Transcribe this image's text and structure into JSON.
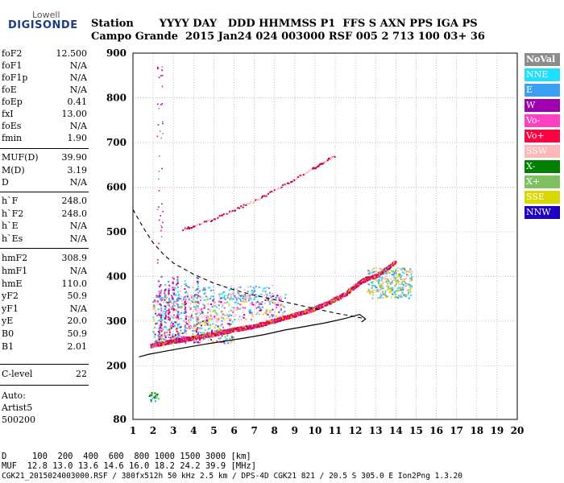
{
  "logo": {
    "brand": "Lowell",
    "product": "DIGISONDE"
  },
  "header": {
    "line1": "Station       YYYY DAY   DDD HHMMSS P1  FFS S AXN PPS IGA PS",
    "line2": "Campo Grande  2015 Jan24 024 003000 RSF 005 2 713 100 03+ 36"
  },
  "params": [
    {
      "name": "foF2",
      "value": "12.500"
    },
    {
      "name": "foF1",
      "value": "N/A"
    },
    {
      "name": "foF1p",
      "value": "N/A"
    },
    {
      "name": "foE",
      "value": "N/A"
    },
    {
      "name": "foEp",
      "value": "0.41"
    },
    {
      "name": "fxI",
      "value": "13.00"
    },
    {
      "name": "foEs",
      "value": "N/A"
    },
    {
      "name": "fmin",
      "value": "1.90"
    },
    {
      "name": "MUF(D)",
      "value": "39.90"
    },
    {
      "name": "M(D)",
      "value": "3.19"
    },
    {
      "name": "D",
      "value": "N/A"
    },
    {
      "name": "h`F",
      "value": "248.0"
    },
    {
      "name": "h`F2",
      "value": "248.0"
    },
    {
      "name": "h`E",
      "value": "N/A"
    },
    {
      "name": "h`Es",
      "value": "N/A"
    },
    {
      "name": "hmF2",
      "value": "308.9"
    },
    {
      "name": "hmF1",
      "value": "N/A"
    },
    {
      "name": "hmE",
      "value": "110.0"
    },
    {
      "name": "yF2",
      "value": "50.9"
    },
    {
      "name": "yF1",
      "value": "N/A"
    },
    {
      "name": "yE",
      "value": "20.0"
    },
    {
      "name": "B0",
      "value": "50.9"
    },
    {
      "name": "B1",
      "value": "2.01"
    },
    {
      "name": "C-level",
      "value": "22"
    }
  ],
  "auto": {
    "line1": "Auto:",
    "line2": "Artist5",
    "line3": "500200"
  },
  "legend": [
    {
      "label": "NoVal",
      "color": "#8c8c8c"
    },
    {
      "label": "NNE",
      "color": "#1ee0ff"
    },
    {
      "label": "E",
      "color": "#3aa0f0"
    },
    {
      "label": "W",
      "color": "#a000b0"
    },
    {
      "label": "Vo-",
      "color": "#ff40c0"
    },
    {
      "label": "Vo+",
      "color": "#ff0040"
    },
    {
      "label": "SSW",
      "color": "#ffb8b8"
    },
    {
      "label": "X-",
      "color": "#008000"
    },
    {
      "label": "X+",
      "color": "#80c060"
    },
    {
      "label": "SSE",
      "color": "#d8d800"
    },
    {
      "label": "NNW",
      "color": "#2000c0"
    }
  ],
  "footer": {
    "line1": "D     100  200  400  600  800 1000 1500 3000 [km]",
    "line2": "MUF  12.8 13.0 13.6 14.6 16.0 18.2 24.2 39.9 [MHz]",
    "line3": "CGK21_2015024003000.RSF / 380fx512h 50 kHz 2.5 km / DPS-4D CGK21 821 / 20.5 S 305.0 E Ion2Png 1.3.20"
  },
  "chart_data": {
    "type": "scatter",
    "xlim": [
      1,
      20
    ],
    "ylim": [
      80,
      900
    ],
    "xticks": [
      "1",
      "2",
      "3",
      "4",
      "5",
      "6",
      "7",
      "8",
      "9",
      "10",
      "11",
      "12",
      "13",
      "14",
      "15",
      "16",
      "17",
      "18",
      "19",
      "20"
    ],
    "yticks": [
      "900",
      "800",
      "700",
      "600",
      "500",
      "400",
      "300",
      "200",
      "80"
    ],
    "ytick_values": [
      900,
      800,
      700,
      600,
      500,
      400,
      300,
      200,
      80
    ],
    "grid": true,
    "trace_o": {
      "x": [
        1.9,
        2.5,
        3.0,
        3.5,
        4.0,
        4.5,
        5.0,
        5.5,
        6.0,
        6.5,
        7.0,
        7.5,
        8.0,
        8.5,
        9.0,
        9.5,
        10.0,
        10.5,
        11.0,
        11.5,
        12.0,
        12.3,
        12.6,
        13.0,
        13.5,
        14.0
      ],
      "y": [
        245,
        250,
        255,
        258,
        262,
        266,
        270,
        275,
        280,
        284,
        288,
        294,
        300,
        307,
        313,
        320,
        328,
        337,
        348,
        360,
        378,
        388,
        395,
        400,
        415,
        432
      ]
    },
    "trace_2hop": {
      "x": [
        3.5,
        4.0,
        5.0,
        6.0,
        7.0,
        8.0,
        9.0,
        10.0,
        10.5,
        11.0
      ],
      "y": [
        505,
        512,
        528,
        548,
        568,
        592,
        617,
        643,
        657,
        670
      ]
    },
    "profile_solid": {
      "x": [
        1.3,
        1.8,
        2.5,
        3.5,
        4.5,
        5.5,
        6.5,
        7.5,
        8.5,
        9.5,
        10.5,
        11.5,
        12.2,
        12.5,
        12.3
      ],
      "y": [
        220,
        226,
        232,
        240,
        248,
        255,
        262,
        270,
        280,
        288,
        296,
        306,
        315,
        305,
        298
      ]
    },
    "profile_dashed": {
      "x": [
        1.0,
        1.5,
        2.0,
        2.5,
        3.0,
        4.0,
        5.0,
        6.0,
        7.0,
        8.0,
        9.0,
        10.0,
        11.0,
        12.0,
        12.5
      ],
      "y": [
        550,
        510,
        475,
        450,
        430,
        405,
        385,
        370,
        358,
        348,
        338,
        328,
        318,
        310,
        305
      ]
    }
  }
}
